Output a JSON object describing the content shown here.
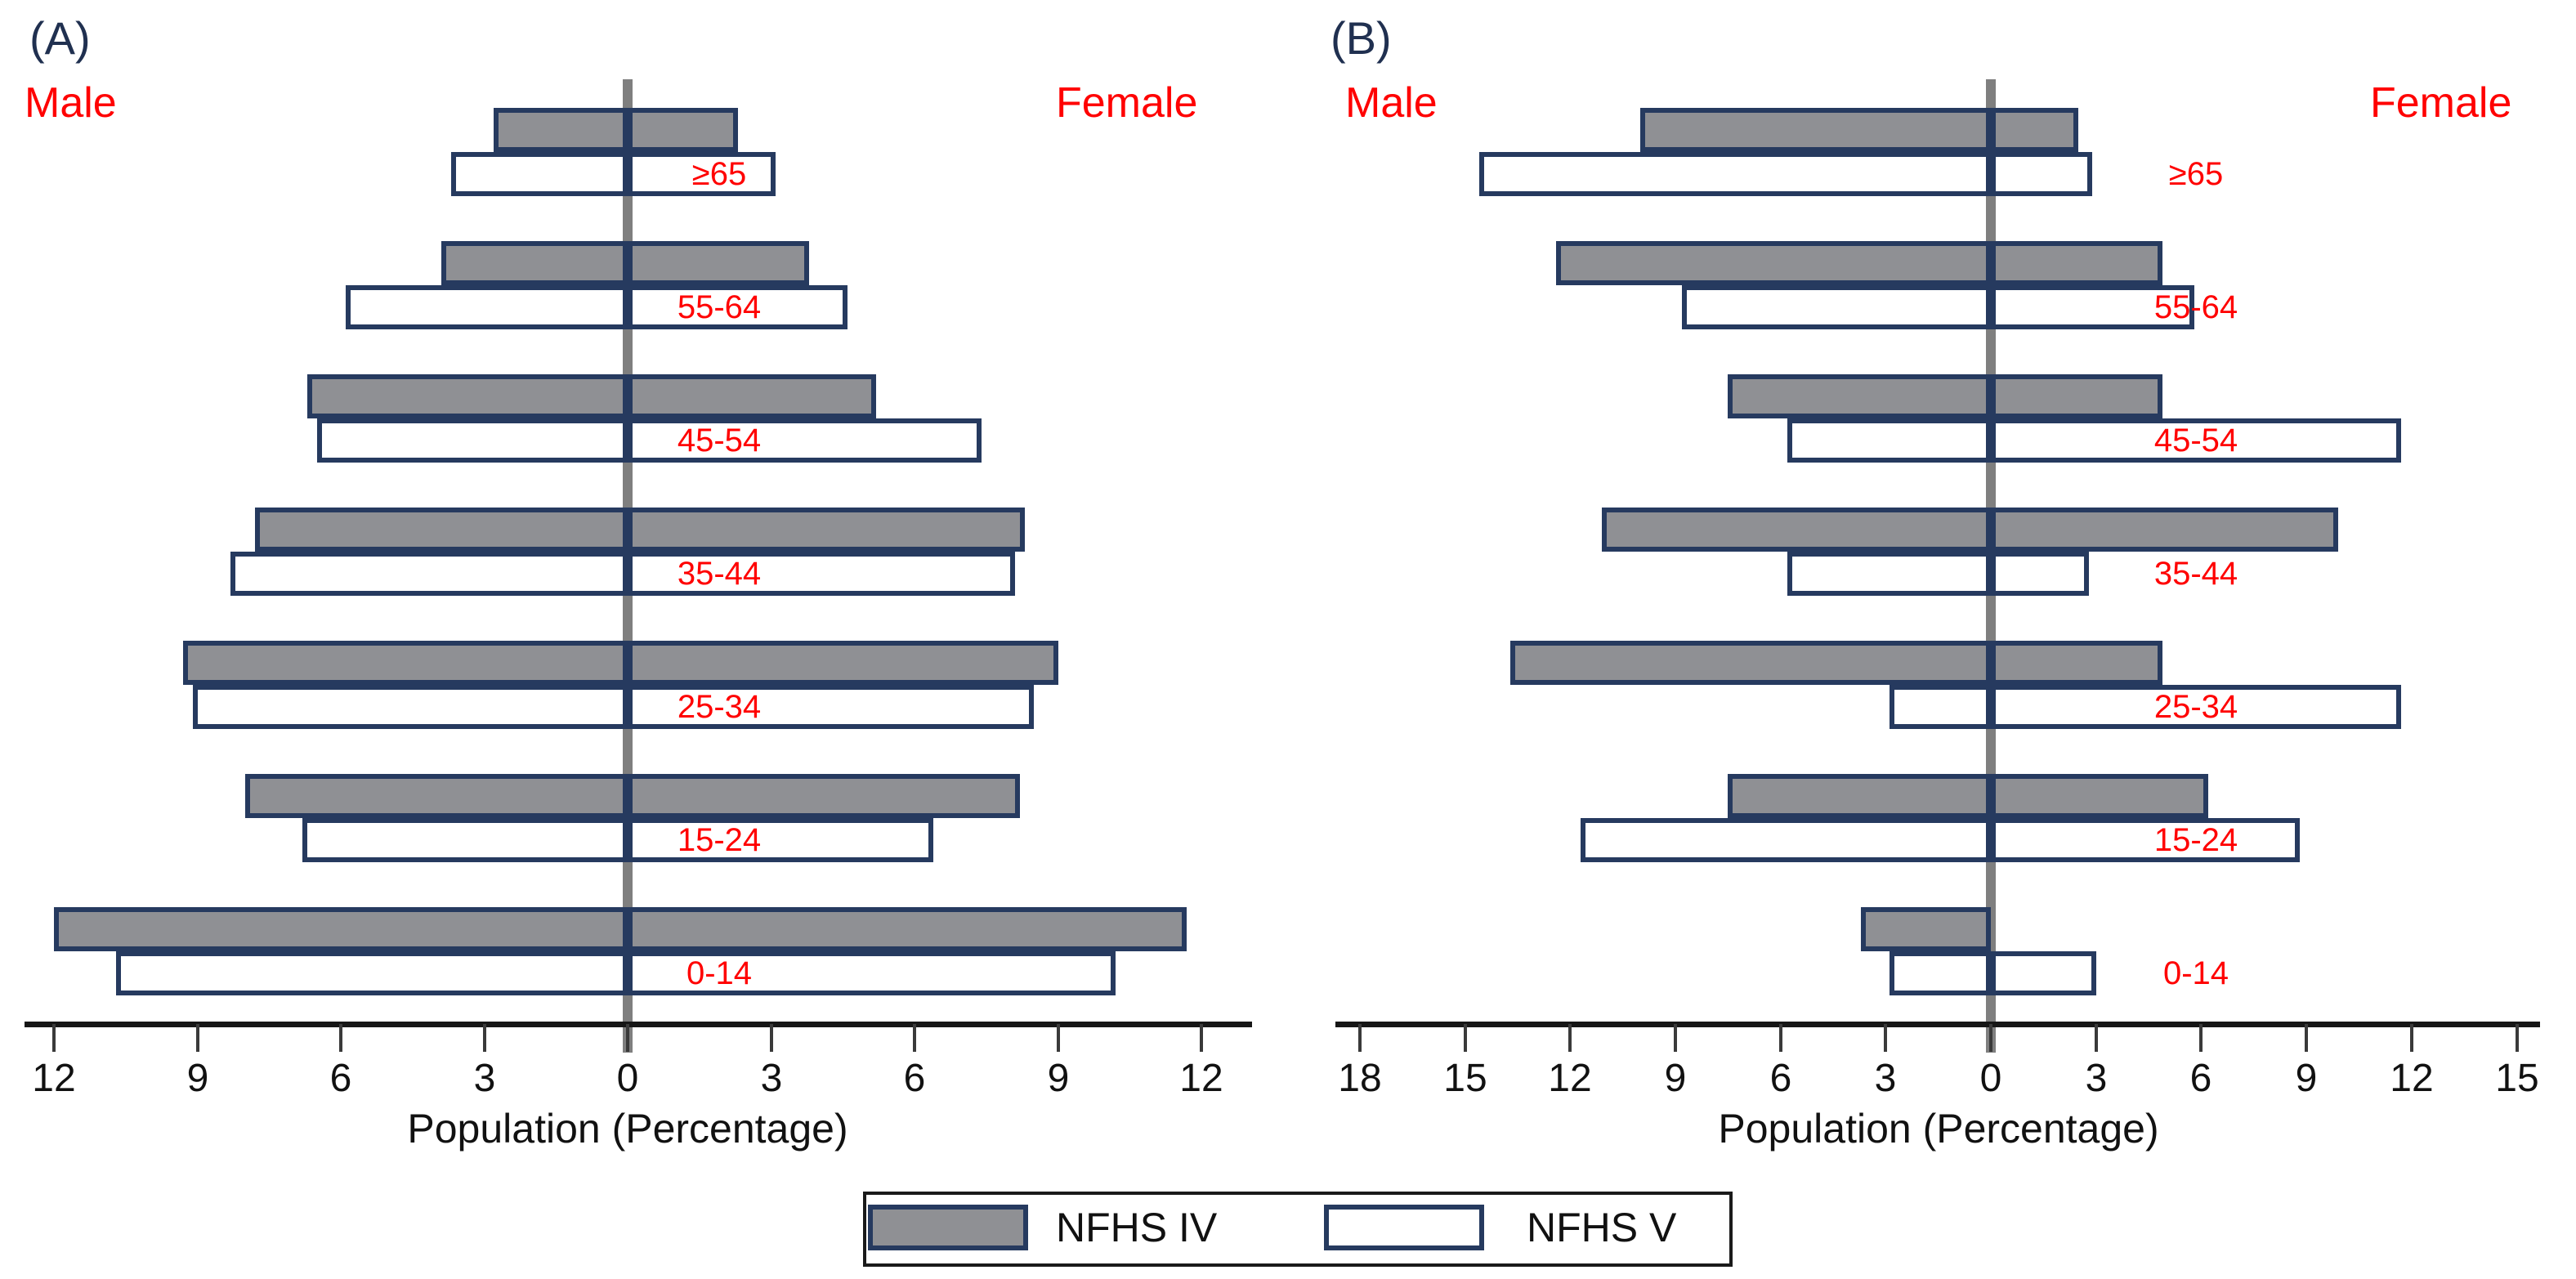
{
  "chart_data": {
    "type": "bar",
    "subtype": "population_pyramid_grouped",
    "background": "#ffffff",
    "legend": {
      "position": "bottom-center",
      "items": [
        {
          "label": "NFHS IV",
          "fill": "#8f9094"
        },
        {
          "label": "NFHS V",
          "fill": "#ffffff"
        }
      ]
    },
    "colors": {
      "bar_border": "#263a5f",
      "nfhs4_fill": "#8f9094",
      "nfhs5_fill": "#ffffff",
      "center_line": "#7f7f7f",
      "axis": "#161616",
      "age_label": "#ff0000",
      "sex_label": "#ff0000",
      "panel_title": "#203050"
    },
    "age_groups_top_to_bottom": [
      "≥65",
      "55-64",
      "45-54",
      "35-44",
      "25-34",
      "15-24",
      "0-14"
    ],
    "panels": [
      {
        "title": "(A)",
        "left_label": "Male",
        "right_label": "Female",
        "xlabel": "Population (Percentage)",
        "x_unit": "percent",
        "xlim": [
          -12,
          12
        ],
        "tick_values": [
          -12,
          -9,
          -6,
          -3,
          0,
          3,
          6,
          9,
          12
        ],
        "tick_labels": [
          "12",
          "9",
          "6",
          "3",
          "0",
          "3",
          "6",
          "9",
          "12"
        ],
        "age_groups": [
          "≥65",
          "55-64",
          "45-54",
          "35-44",
          "25-34",
          "15-24",
          "0-14"
        ],
        "series": [
          {
            "name": "NFHS IV",
            "male": [
              2.8,
              3.9,
              6.7,
              7.8,
              9.3,
              8.0,
              12.0
            ],
            "female": [
              2.3,
              3.8,
              5.2,
              8.3,
              9.0,
              8.2,
              11.7
            ]
          },
          {
            "name": "NFHS V",
            "male": [
              3.7,
              5.9,
              6.5,
              8.3,
              9.1,
              6.8,
              10.7
            ],
            "female": [
              3.1,
              4.6,
              7.4,
              8.1,
              8.5,
              6.4,
              10.2
            ]
          }
        ]
      },
      {
        "title": "(B)",
        "left_label": "Male",
        "right_label": "Female",
        "xlabel": "Population (Percentage)",
        "x_unit": "percent",
        "xlim": [
          -18,
          15
        ],
        "tick_values": [
          -18,
          -15,
          -12,
          -9,
          -6,
          -3,
          0,
          3,
          6,
          9,
          12,
          15
        ],
        "tick_labels": [
          "18",
          "15",
          "12",
          "9",
          "6",
          "3",
          "0",
          "3",
          "6",
          "9",
          "12",
          "15"
        ],
        "age_groups": [
          "≥65",
          "55-64",
          "45-54",
          "35-44",
          "25-34",
          "15-24",
          "0-14"
        ],
        "series": [
          {
            "name": "NFHS IV",
            "male": [
              10.0,
              12.4,
              7.5,
              11.1,
              13.7,
              7.5,
              3.7
            ],
            "female": [
              2.5,
              4.9,
              4.9,
              9.9,
              4.9,
              6.2,
              0.0
            ]
          },
          {
            "name": "NFHS V",
            "male": [
              14.6,
              8.8,
              5.8,
              5.8,
              2.9,
              11.7,
              2.9
            ],
            "female": [
              2.9,
              5.8,
              11.7,
              2.8,
              11.7,
              8.8,
              3.0
            ]
          }
        ]
      }
    ]
  }
}
